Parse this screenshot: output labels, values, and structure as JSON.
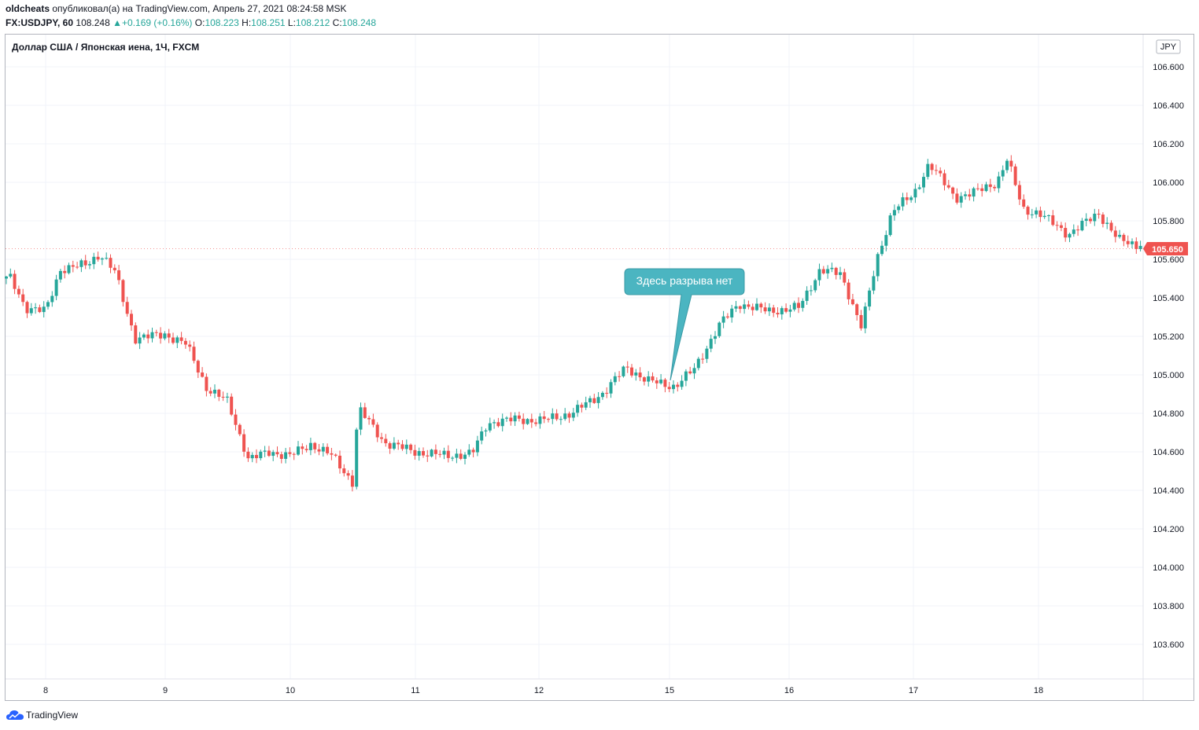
{
  "header": {
    "author": "oldcheats",
    "published_text": "опубликовал(а) на TradingView.com, Апрель 27, 2021 08:24:58 MSK",
    "symbol": "FX:USDJPY, 60",
    "last": "108.248",
    "change": "+0.169 (+0.16%)",
    "o_label": "O:",
    "o_value": "108.223",
    "h_label": "H:",
    "h_value": "108.251",
    "l_label": "L:",
    "l_value": "108.212",
    "c_label": "C:",
    "c_value": "108.248",
    "up_arrow": "▲"
  },
  "brand": {
    "name": "TradingView",
    "icon": "tradingview-cloud-logo"
  },
  "colors": {
    "up": "#26a69a",
    "down": "#ef5350",
    "grid": "#f0f3fa",
    "axis_text": "#131722",
    "annotation": "#4bb5c1"
  },
  "chart_data": {
    "type": "candlestick",
    "title": "Доллар США / Японская иена, 1Ч, FXCM",
    "currency_badge": "JPY",
    "last_price": "105.650",
    "annotation": "Здесь разрыва нет",
    "ylim": [
      103.4,
      106.7
    ],
    "yticks": [
      "106.600",
      "106.400",
      "106.200",
      "106.000",
      "105.800",
      "105.600",
      "105.400",
      "105.200",
      "105.000",
      "104.800",
      "104.600",
      "104.400",
      "104.200",
      "104.000",
      "103.800",
      "103.600"
    ],
    "xticks": [
      "8",
      "9",
      "10",
      "11",
      "12",
      "15",
      "16",
      "17",
      "18"
    ],
    "grid": true,
    "approximate_close_path": [
      {
        "x": "7 17:00",
        "y": 105.5
      },
      {
        "x": "7 20:00",
        "y": 105.35
      },
      {
        "x": "8 00:00",
        "y": 105.33
      },
      {
        "x": "8 03:00",
        "y": 105.55
      },
      {
        "x": "8 08:00",
        "y": 105.57
      },
      {
        "x": "8 11:00",
        "y": 105.63
      },
      {
        "x": "8 14:00",
        "y": 105.53
      },
      {
        "x": "8 16:00",
        "y": 105.35
      },
      {
        "x": "8 18:00",
        "y": 105.19
      },
      {
        "x": "9 00:00",
        "y": 105.21
      },
      {
        "x": "9 04:00",
        "y": 105.16
      },
      {
        "x": "9 08:00",
        "y": 104.93
      },
      {
        "x": "9 12:00",
        "y": 104.86
      },
      {
        "x": "9 16:00",
        "y": 104.56
      },
      {
        "x": "9 20:00",
        "y": 104.6
      },
      {
        "x": "10 00:00",
        "y": 104.58
      },
      {
        "x": "10 04:00",
        "y": 104.64
      },
      {
        "x": "10 08:00",
        "y": 104.58
      },
      {
        "x": "10 12:00",
        "y": 104.44
      },
      {
        "x": "10 13:00",
        "y": 104.83
      },
      {
        "x": "10 18:00",
        "y": 104.65
      },
      {
        "x": "11 00:00",
        "y": 104.6
      },
      {
        "x": "11 06:00",
        "y": 104.58
      },
      {
        "x": "11 11:00",
        "y": 104.59
      },
      {
        "x": "11 14:00",
        "y": 104.75
      },
      {
        "x": "11 20:00",
        "y": 104.77
      },
      {
        "x": "12 00:00",
        "y": 104.76
      },
      {
        "x": "12 06:00",
        "y": 104.8
      },
      {
        "x": "12 12:00",
        "y": 104.91
      },
      {
        "x": "12 16:00",
        "y": 105.04
      },
      {
        "x": "12 20:00",
        "y": 104.97
      },
      {
        "x": "12 23:00",
        "y": 104.95
      },
      {
        "x": "15 01:00",
        "y": 104.94
      },
      {
        "x": "15 05:00",
        "y": 105.03
      },
      {
        "x": "15 10:00",
        "y": 105.26
      },
      {
        "x": "15 14:00",
        "y": 105.37
      },
      {
        "x": "15 20:00",
        "y": 105.33
      },
      {
        "x": "16 02:00",
        "y": 105.35
      },
      {
        "x": "16 06:00",
        "y": 105.55
      },
      {
        "x": "16 10:00",
        "y": 105.52
      },
      {
        "x": "16 14:00",
        "y": 105.25
      },
      {
        "x": "16 17:00",
        "y": 105.6
      },
      {
        "x": "16 20:00",
        "y": 105.86
      },
      {
        "x": "17 00:00",
        "y": 105.93
      },
      {
        "x": "17 03:00",
        "y": 106.1
      },
      {
        "x": "17 08:00",
        "y": 105.92
      },
      {
        "x": "17 12:00",
        "y": 105.95
      },
      {
        "x": "17 16:00",
        "y": 106.0
      },
      {
        "x": "17 18:00",
        "y": 106.12
      },
      {
        "x": "17 21:00",
        "y": 105.86
      },
      {
        "x": "18 00:00",
        "y": 105.84
      },
      {
        "x": "18 06:00",
        "y": 105.73
      },
      {
        "x": "18 12:00",
        "y": 105.84
      },
      {
        "x": "18 16:00",
        "y": 105.7
      },
      {
        "x": "18 20:00",
        "y": 105.67
      },
      {
        "x": "18 22:00",
        "y": 105.77
      },
      {
        "x": "19 00:00",
        "y": 105.65
      }
    ]
  }
}
